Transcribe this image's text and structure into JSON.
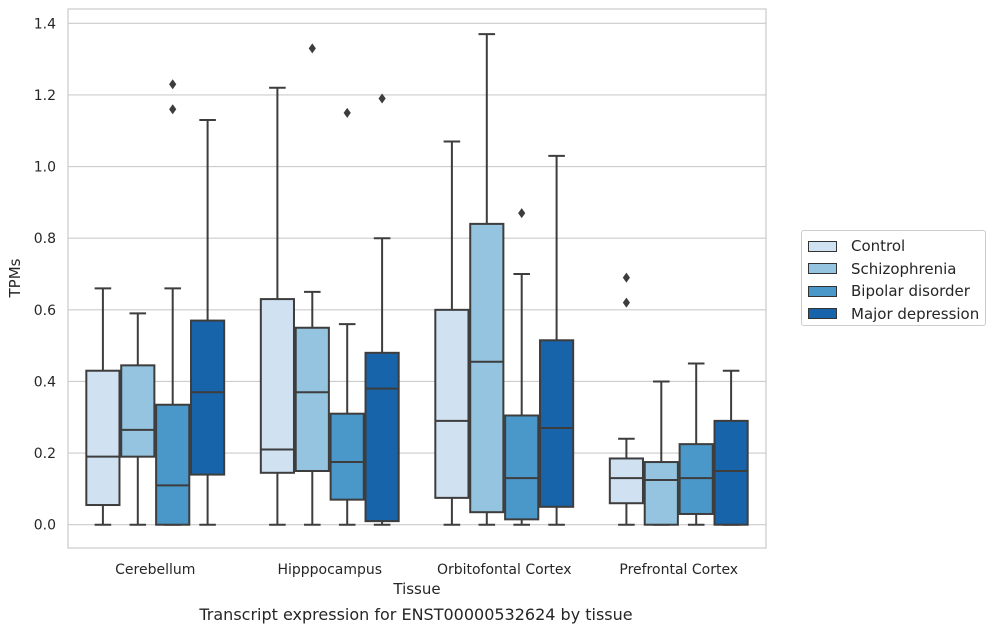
{
  "caption": "Transcript expression for ENST00000532624 by tissue",
  "legend": {
    "items": [
      {
        "label": "Control",
        "color": "#d0e1f2"
      },
      {
        "label": "Schizophrenia",
        "color": "#94c4df"
      },
      {
        "label": "Bipolar disorder",
        "color": "#4a98c9"
      },
      {
        "label": "Major depression",
        "color": "#1764ab"
      }
    ]
  },
  "chart_data": {
    "type": "box",
    "xlabel": "Tissue",
    "ylabel": "TPMs",
    "ylim": [
      -0.065,
      1.44
    ],
    "yticks": [
      "0.0",
      "0.2",
      "0.4",
      "0.6",
      "0.8",
      "1.0",
      "1.2",
      "1.4"
    ],
    "categories": [
      "Cerebellum",
      "Hipppocampus",
      "Orbitofontal Cortex",
      "Prefrontal Cortex"
    ],
    "grid": true,
    "legend_position": "right",
    "series": [
      {
        "name": "Control",
        "color": "#d0e1f2",
        "boxes": [
          {
            "whisker_low": 0,
            "q1": 0.055,
            "median": 0.19,
            "q3": 0.43,
            "whisker_high": 0.66,
            "outliers": []
          },
          {
            "whisker_low": 0,
            "q1": 0.145,
            "median": 0.21,
            "q3": 0.63,
            "whisker_high": 1.22,
            "outliers": []
          },
          {
            "whisker_low": 0,
            "q1": 0.075,
            "median": 0.29,
            "q3": 0.6,
            "whisker_high": 1.07,
            "outliers": []
          },
          {
            "whisker_low": 0,
            "q1": 0.06,
            "median": 0.13,
            "q3": 0.185,
            "whisker_high": 0.24,
            "outliers": [
              0.62,
              0.69
            ]
          }
        ]
      },
      {
        "name": "Schizophrenia",
        "color": "#94c4df",
        "boxes": [
          {
            "whisker_low": 0,
            "q1": 0.19,
            "median": 0.265,
            "q3": 0.445,
            "whisker_high": 0.59,
            "outliers": []
          },
          {
            "whisker_low": 0,
            "q1": 0.15,
            "median": 0.37,
            "q3": 0.55,
            "whisker_high": 0.65,
            "outliers": [
              1.33
            ]
          },
          {
            "whisker_low": 0,
            "q1": 0.035,
            "median": 0.455,
            "q3": 0.84,
            "whisker_high": 1.37,
            "outliers": []
          },
          {
            "whisker_low": 0,
            "q1": 0,
            "median": 0.125,
            "q3": 0.175,
            "whisker_high": 0.4,
            "outliers": []
          }
        ]
      },
      {
        "name": "Bipolar disorder",
        "color": "#4a98c9",
        "boxes": [
          {
            "whisker_low": 0,
            "q1": 0,
            "median": 0.11,
            "q3": 0.335,
            "whisker_high": 0.66,
            "outliers": [
              1.16,
              1.23
            ]
          },
          {
            "whisker_low": 0,
            "q1": 0.07,
            "median": 0.175,
            "q3": 0.31,
            "whisker_high": 0.56,
            "outliers": [
              1.15
            ]
          },
          {
            "whisker_low": 0,
            "q1": 0.015,
            "median": 0.13,
            "q3": 0.305,
            "whisker_high": 0.7,
            "outliers": [
              0.87
            ]
          },
          {
            "whisker_low": 0,
            "q1": 0.03,
            "median": 0.13,
            "q3": 0.225,
            "whisker_high": 0.45,
            "outliers": []
          }
        ]
      },
      {
        "name": "Major depression",
        "color": "#1764ab",
        "boxes": [
          {
            "whisker_low": 0,
            "q1": 0.14,
            "median": 0.37,
            "q3": 0.57,
            "whisker_high": 1.13,
            "outliers": []
          },
          {
            "whisker_low": 0,
            "q1": 0.01,
            "median": 0.38,
            "q3": 0.48,
            "whisker_high": 0.8,
            "outliers": [
              1.19
            ]
          },
          {
            "whisker_low": 0,
            "q1": 0.05,
            "median": 0.27,
            "q3": 0.515,
            "whisker_high": 1.03,
            "outliers": []
          },
          {
            "whisker_low": 0,
            "q1": 0,
            "median": 0.15,
            "q3": 0.29,
            "whisker_high": 0.43,
            "outliers": []
          }
        ]
      }
    ]
  }
}
